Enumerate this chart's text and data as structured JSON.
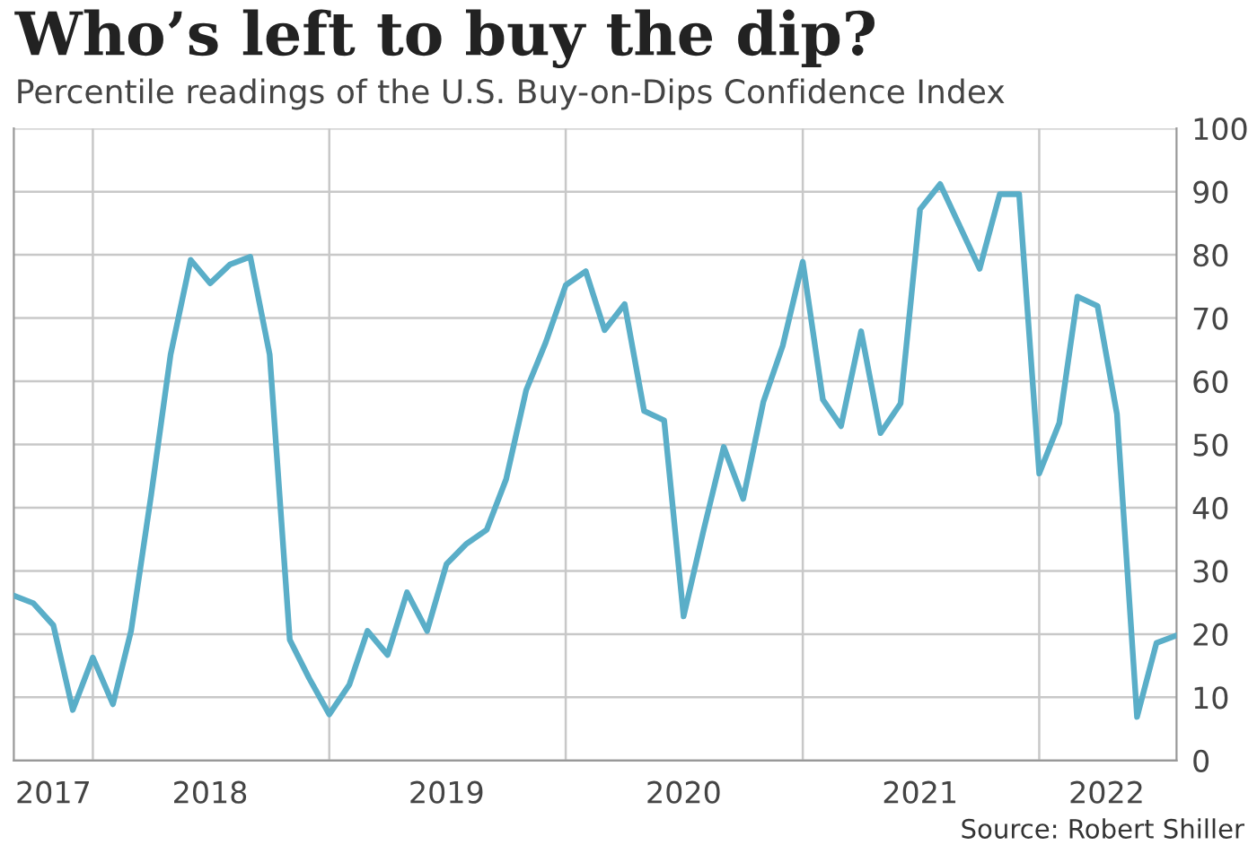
{
  "chart_data": {
    "type": "line",
    "title": "Who’s left to buy the dip?",
    "subtitle": "Percentile readings of the U.S. Buy-on-Dips Confidence Index",
    "annotations": [
      "Source: Robert Shiller"
    ],
    "x": [
      "2017-09",
      "2017-10",
      "2017-11",
      "2017-12",
      "2018-01",
      "2018-02",
      "2018-03",
      "2018-04",
      "2018-05",
      "2018-06",
      "2018-07",
      "2018-08",
      "2018-09",
      "2018-10",
      "2018-11",
      "2018-12",
      "2019-01",
      "2019-02",
      "2019-03",
      "2019-04",
      "2019-05",
      "2019-06",
      "2019-07",
      "2019-08",
      "2019-09",
      "2019-10",
      "2019-11",
      "2019-12",
      "2020-01",
      "2020-02",
      "2020-03",
      "2020-04",
      "2020-05",
      "2020-06",
      "2020-07",
      "2020-08",
      "2020-09",
      "2020-10",
      "2020-11",
      "2020-12",
      "2021-01",
      "2021-02",
      "2021-03",
      "2021-04",
      "2021-05",
      "2021-06",
      "2021-07",
      "2021-08",
      "2021-09",
      "2021-10",
      "2021-11",
      "2021-12",
      "2022-01",
      "2022-02",
      "2022-03",
      "2022-04",
      "2022-05",
      "2022-06",
      "2022-07",
      "2022-08"
    ],
    "series": [
      {
        "color": "#5aaec8",
        "values": [
          26.1,
          24.9,
          21.4,
          8.0,
          16.3,
          8.9,
          20.5,
          42,
          64.2,
          79.2,
          75.5,
          78.5,
          79.7,
          64.2,
          19.1,
          13.0,
          7.3,
          12.0,
          20.5,
          16.7,
          26.6,
          20.5,
          31.1,
          34.3,
          36.5,
          44.5,
          58.6,
          66.1,
          75.2,
          77.4,
          68.1,
          72.2,
          55.3,
          53.8,
          22.8,
          36.5,
          49.6,
          41.4,
          56.7,
          65.6,
          78.9,
          57.1,
          52.9,
          67.9,
          51.8,
          56.5,
          87.2,
          91.2,
          84.4,
          77.8,
          89.6,
          89.6,
          45.4,
          53.4,
          73.4,
          71.9,
          54.8,
          6.9,
          18.6,
          19.8
        ]
      }
    ],
    "xlim": [
      "2017-09",
      "2022-08"
    ],
    "xticks": [
      {
        "value": "2017-11-01",
        "label": "2017"
      },
      {
        "value": "2018-01-01",
        "label": null
      },
      {
        "value": "2018-07-01",
        "label": "2018"
      },
      {
        "value": "2019-01-01",
        "label": null
      },
      {
        "value": "2019-07-01",
        "label": "2019"
      },
      {
        "value": "2020-01-01",
        "label": null
      },
      {
        "value": "2020-07-01",
        "label": "2020"
      },
      {
        "value": "2021-01-01",
        "label": null
      },
      {
        "value": "2021-07-01",
        "label": "2021"
      },
      {
        "value": "2022-01-01",
        "label": null
      },
      {
        "value": "2022-04-15",
        "label": "2022"
      }
    ],
    "ylim": [
      0,
      100
    ],
    "yticks": [
      0,
      10,
      20,
      30,
      40,
      50,
      60,
      70,
      80,
      90,
      100
    ],
    "grid": true,
    "marker": "none",
    "line_style": "solid"
  }
}
